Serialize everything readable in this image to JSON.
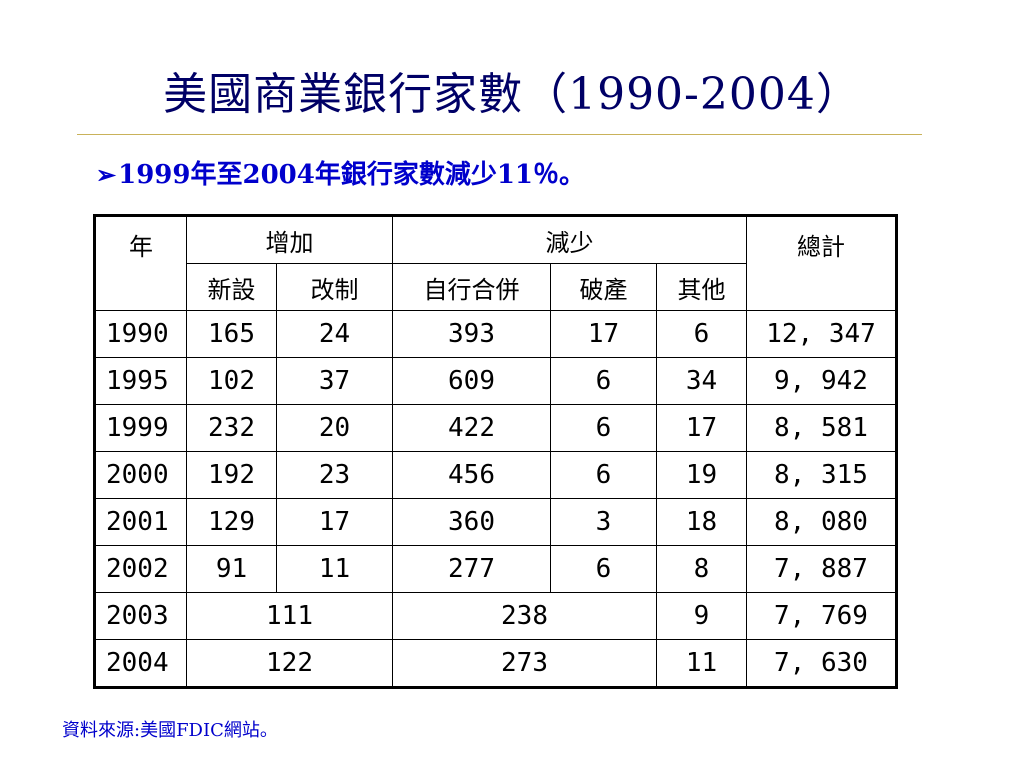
{
  "title": "美國商業銀行家數（1990-2004）",
  "bullet": {
    "arrow": "➢",
    "text": "1999年至2004年銀行家數減少11％。"
  },
  "table": {
    "headers": {
      "year": "年",
      "increase": "增加",
      "decrease": "減少",
      "total": "總計",
      "new_charter": "新設",
      "conversion": "改制",
      "merger": "自行合併",
      "failure": "破產",
      "other": "其他"
    },
    "rows": [
      {
        "year": "1990",
        "new": "165",
        "conv": "24",
        "merger": "393",
        "failure": "17",
        "other": "6",
        "total": "12, 347"
      },
      {
        "year": "1995",
        "new": "102",
        "conv": "37",
        "merger": "609",
        "failure": "6",
        "other": "34",
        "total": "9, 942"
      },
      {
        "year": "1999",
        "new": "232",
        "conv": "20",
        "merger": "422",
        "failure": "6",
        "other": "17",
        "total": "8, 581"
      },
      {
        "year": "2000",
        "new": "192",
        "conv": "23",
        "merger": "456",
        "failure": "6",
        "other": "19",
        "total": "8, 315"
      },
      {
        "year": "2001",
        "new": "129",
        "conv": "17",
        "merger": "360",
        "failure": "3",
        "other": "18",
        "total": "8, 080"
      },
      {
        "year": "2002",
        "new": "91",
        "conv": "11",
        "merger": "277",
        "failure": "6",
        "other": "8",
        "total": "7, 887"
      }
    ],
    "merged_rows": [
      {
        "year": "2003",
        "increase": "111",
        "decrease": "238",
        "other": "9",
        "total": "7, 769"
      },
      {
        "year": "2004",
        "increase": "122",
        "decrease": "273",
        "other": "11",
        "total": "7, 630"
      }
    ]
  },
  "source": "資料來源:美國FDIC網站。",
  "colors": {
    "title": "#000066",
    "bullet": "#0000cc",
    "rule": "#c9b25a"
  }
}
